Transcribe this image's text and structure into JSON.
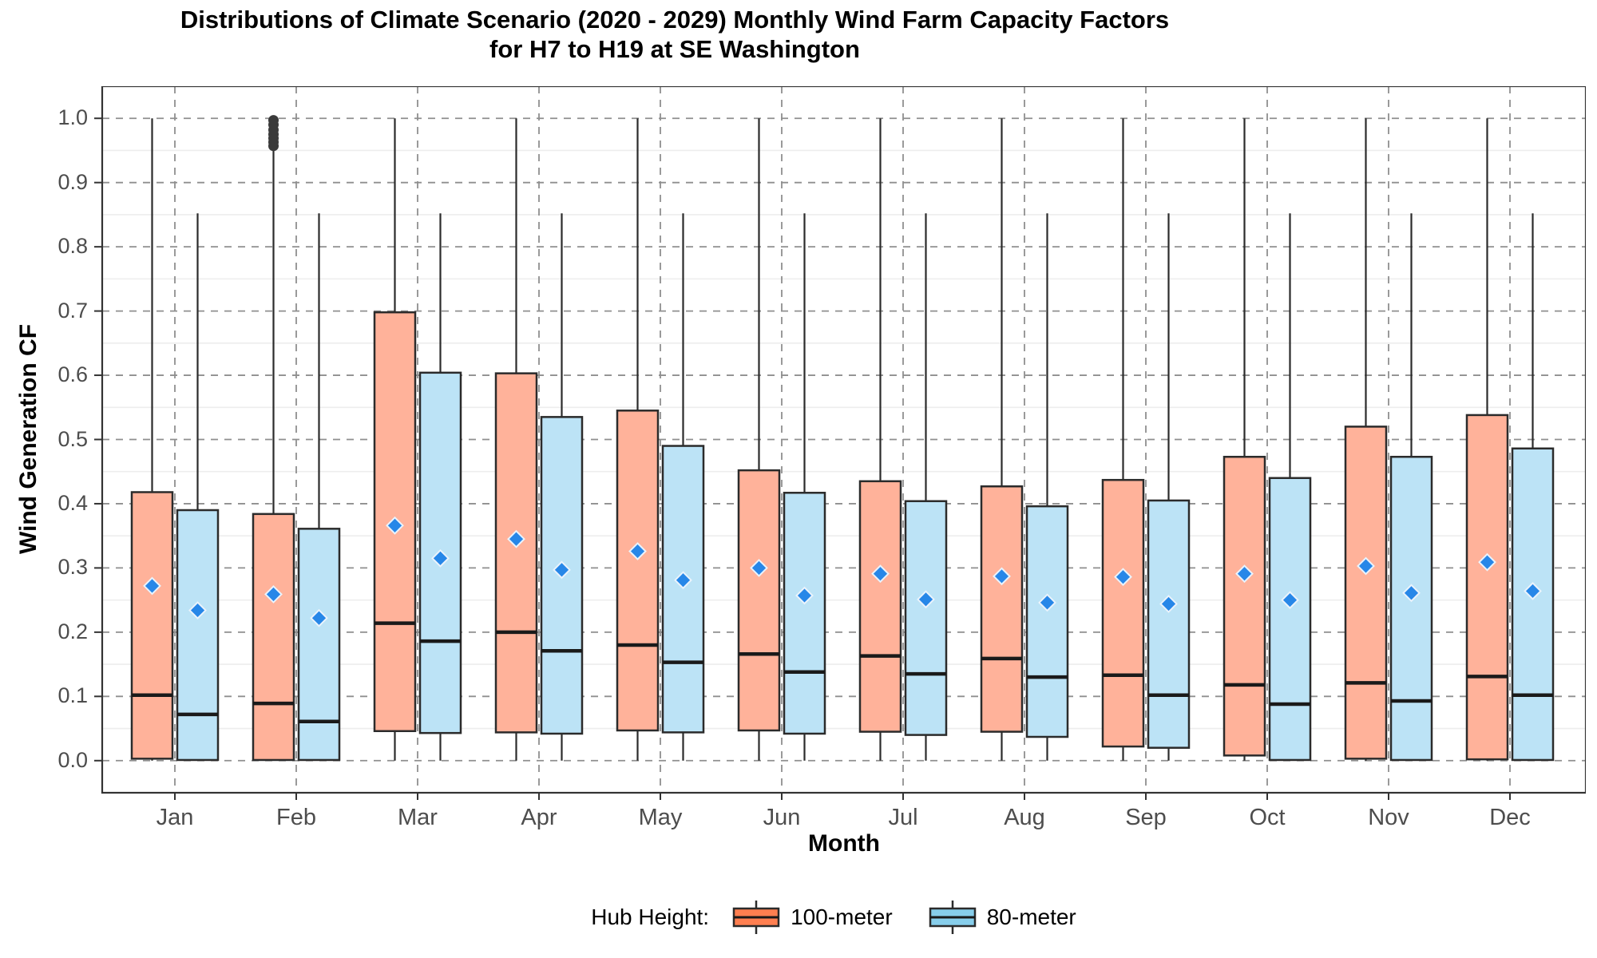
{
  "title": {
    "line1": "Distributions of Climate Scenario (2020 - 2029) Monthly Wind Farm Capacity Factors",
    "line2": "for H7 to H19 at SE Washington"
  },
  "axes": {
    "y_label": "Wind Generation CF",
    "x_label": "Month",
    "y_tick_labels": [
      "1.0",
      "0.9",
      "0.8",
      "0.7",
      "0.6",
      "0.5",
      "0.4",
      "0.3",
      "0.2",
      "0.1",
      "0.0"
    ],
    "y_tick_values": [
      1.0,
      0.9,
      0.8,
      0.7,
      0.6,
      0.5,
      0.4,
      0.3,
      0.2,
      0.1,
      0.0
    ],
    "y_minor_values": [
      0.95,
      0.85,
      0.75,
      0.65,
      0.55,
      0.45,
      0.35,
      0.25,
      0.15,
      0.05
    ],
    "y_view_min": -0.05,
    "y_view_max": 1.05
  },
  "legend": {
    "title": "Hub Height:",
    "items": [
      {
        "label": "100-meter",
        "key_fill": "#FF7F50"
      },
      {
        "label": "80-meter",
        "key_fill": "#87CEEB"
      }
    ]
  },
  "colors": {
    "box_fill_100m": "#FFB29A",
    "box_fill_80m": "#BCE3F6",
    "box_stroke": "#2b2b2b",
    "median": "#1a1a1a",
    "whisker": "#2b2b2b",
    "mean_marker": "#2787E8",
    "mean_marker_edge": "#EAF3FC",
    "outlier": "#3a3a3a",
    "grid_major": "#8f8f8f",
    "grid_minor": "#ededed",
    "panel_border": "#333333",
    "tick": "#333333",
    "tick_text": "#4d4d4d"
  },
  "chart_data": {
    "type": "boxplot",
    "title": "Distributions of Climate Scenario (2020 - 2029) Monthly Wind Farm Capacity Factors for H7 to H19 at SE Washington",
    "xlabel": "Month",
    "ylabel": "Wind Generation CF",
    "ylim": [
      0.0,
      1.0
    ],
    "grid": "major-dashed, minor-light",
    "legend_position": "bottom",
    "mean_marker": "blue diamond",
    "categories": [
      "Jan",
      "Feb",
      "Mar",
      "Apr",
      "May",
      "Jun",
      "Jul",
      "Aug",
      "Sep",
      "Oct",
      "Nov",
      "Dec"
    ],
    "series": [
      {
        "name": "100-meter",
        "boxes": [
          {
            "whisker_low": 0.0,
            "q1": 0.003,
            "median": 0.102,
            "q3": 0.418,
            "whisker_high": 1.0,
            "mean": 0.272,
            "outliers": []
          },
          {
            "whisker_low": 0.0,
            "q1": 0.001,
            "median": 0.089,
            "q3": 0.384,
            "whisker_high": 0.953,
            "mean": 0.259,
            "outliers": [
              0.957,
              0.963,
              0.969,
              0.975,
              0.982,
              0.99,
              0.997
            ]
          },
          {
            "whisker_low": 0.0,
            "q1": 0.046,
            "median": 0.214,
            "q3": 0.698,
            "whisker_high": 1.0,
            "mean": 0.366,
            "outliers": []
          },
          {
            "whisker_low": 0.0,
            "q1": 0.044,
            "median": 0.2,
            "q3": 0.603,
            "whisker_high": 1.0,
            "mean": 0.345,
            "outliers": []
          },
          {
            "whisker_low": 0.0,
            "q1": 0.047,
            "median": 0.18,
            "q3": 0.545,
            "whisker_high": 1.0,
            "mean": 0.326,
            "outliers": []
          },
          {
            "whisker_low": 0.0,
            "q1": 0.047,
            "median": 0.166,
            "q3": 0.452,
            "whisker_high": 1.0,
            "mean": 0.3,
            "outliers": []
          },
          {
            "whisker_low": 0.0,
            "q1": 0.045,
            "median": 0.163,
            "q3": 0.435,
            "whisker_high": 1.0,
            "mean": 0.291,
            "outliers": []
          },
          {
            "whisker_low": 0.0,
            "q1": 0.045,
            "median": 0.159,
            "q3": 0.427,
            "whisker_high": 1.0,
            "mean": 0.287,
            "outliers": []
          },
          {
            "whisker_low": 0.0,
            "q1": 0.022,
            "median": 0.133,
            "q3": 0.437,
            "whisker_high": 1.0,
            "mean": 0.286,
            "outliers": []
          },
          {
            "whisker_low": 0.0,
            "q1": 0.008,
            "median": 0.118,
            "q3": 0.473,
            "whisker_high": 1.0,
            "mean": 0.291,
            "outliers": []
          },
          {
            "whisker_low": 0.0,
            "q1": 0.003,
            "median": 0.121,
            "q3": 0.52,
            "whisker_high": 1.0,
            "mean": 0.303,
            "outliers": []
          },
          {
            "whisker_low": 0.0,
            "q1": 0.002,
            "median": 0.131,
            "q3": 0.538,
            "whisker_high": 1.0,
            "mean": 0.309,
            "outliers": []
          }
        ]
      },
      {
        "name": "80-meter",
        "boxes": [
          {
            "whisker_low": 0.0,
            "q1": 0.001,
            "median": 0.072,
            "q3": 0.39,
            "whisker_high": 0.852,
            "mean": 0.234,
            "outliers": []
          },
          {
            "whisker_low": 0.0,
            "q1": 0.001,
            "median": 0.061,
            "q3": 0.361,
            "whisker_high": 0.852,
            "mean": 0.222,
            "outliers": []
          },
          {
            "whisker_low": 0.0,
            "q1": 0.043,
            "median": 0.186,
            "q3": 0.604,
            "whisker_high": 0.852,
            "mean": 0.315,
            "outliers": []
          },
          {
            "whisker_low": 0.0,
            "q1": 0.042,
            "median": 0.171,
            "q3": 0.535,
            "whisker_high": 0.852,
            "mean": 0.297,
            "outliers": []
          },
          {
            "whisker_low": 0.0,
            "q1": 0.044,
            "median": 0.153,
            "q3": 0.49,
            "whisker_high": 0.852,
            "mean": 0.281,
            "outliers": []
          },
          {
            "whisker_low": 0.0,
            "q1": 0.042,
            "median": 0.138,
            "q3": 0.417,
            "whisker_high": 0.852,
            "mean": 0.257,
            "outliers": []
          },
          {
            "whisker_low": 0.0,
            "q1": 0.04,
            "median": 0.135,
            "q3": 0.404,
            "whisker_high": 0.852,
            "mean": 0.251,
            "outliers": []
          },
          {
            "whisker_low": 0.0,
            "q1": 0.037,
            "median": 0.13,
            "q3": 0.396,
            "whisker_high": 0.852,
            "mean": 0.246,
            "outliers": []
          },
          {
            "whisker_low": 0.0,
            "q1": 0.02,
            "median": 0.102,
            "q3": 0.405,
            "whisker_high": 0.852,
            "mean": 0.244,
            "outliers": []
          },
          {
            "whisker_low": 0.0,
            "q1": 0.001,
            "median": 0.088,
            "q3": 0.44,
            "whisker_high": 0.852,
            "mean": 0.25,
            "outliers": []
          },
          {
            "whisker_low": 0.0,
            "q1": 0.001,
            "median": 0.093,
            "q3": 0.473,
            "whisker_high": 0.852,
            "mean": 0.261,
            "outliers": []
          },
          {
            "whisker_low": 0.0,
            "q1": 0.001,
            "median": 0.102,
            "q3": 0.486,
            "whisker_high": 0.852,
            "mean": 0.264,
            "outliers": []
          }
        ]
      }
    ]
  }
}
